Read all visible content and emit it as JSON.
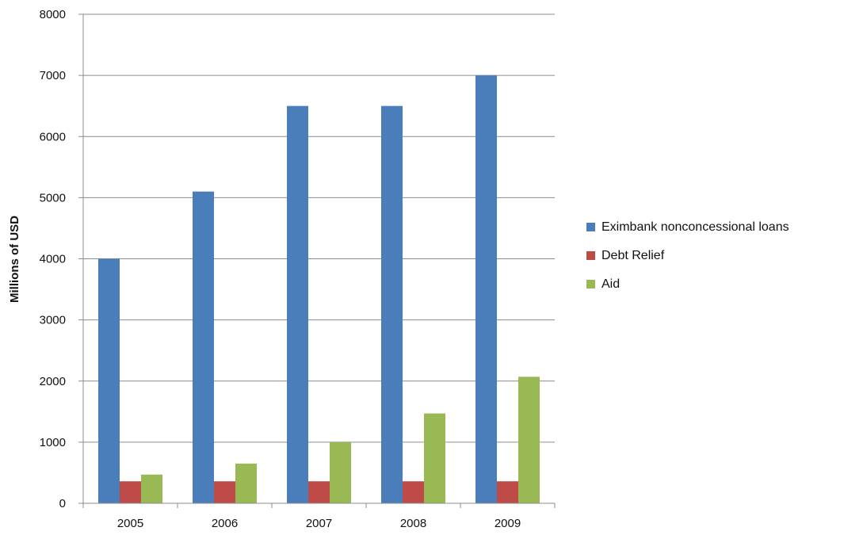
{
  "chart_data": {
    "type": "bar",
    "title": "",
    "xlabel": "",
    "ylabel": "Millions of USD",
    "categories": [
      "2005",
      "2006",
      "2007",
      "2008",
      "2009"
    ],
    "series": [
      {
        "name": "Eximbank nonconcessional loans",
        "color": "#4a7ebb",
        "values": [
          4000,
          5100,
          6500,
          6500,
          7000
        ]
      },
      {
        "name": "Debt Relief",
        "color": "#be4b48",
        "values": [
          360,
          360,
          360,
          360,
          360
        ]
      },
      {
        "name": "Aid",
        "color": "#98b954",
        "values": [
          470,
          650,
          1000,
          1470,
          2070
        ]
      }
    ],
    "ylim": [
      0,
      8000
    ],
    "yticks": [
      "0",
      "1000",
      "2000",
      "3000",
      "4000",
      "5000",
      "6000",
      "7000",
      "8000"
    ],
    "grid": true,
    "legend_position": "right"
  }
}
